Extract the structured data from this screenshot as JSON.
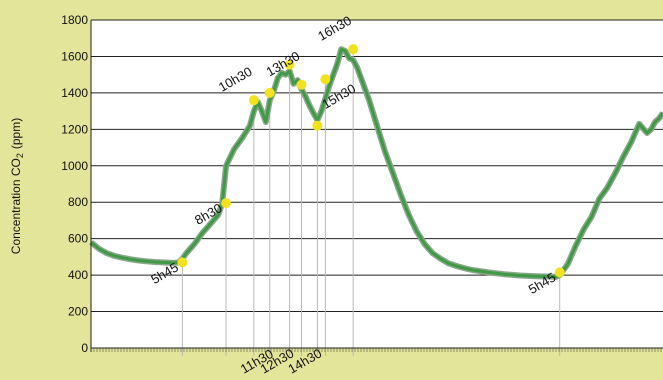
{
  "chart_data": {
    "type": "line",
    "ylabel": "Concentration CO",
    "ylabel_sub": "2",
    "ylabel_unit": "(ppm)",
    "ylim": [
      0,
      1800
    ],
    "yticks": [
      0,
      200,
      400,
      600,
      800,
      1000,
      1200,
      1400,
      1600,
      1800
    ],
    "ytick_labels": [
      "0",
      "200",
      "400",
      "600",
      "800",
      "1000",
      "1200",
      "1400",
      "1600",
      "1800"
    ],
    "grid": "horizontal",
    "colors": {
      "plot_bg": "#ffffff",
      "page_bg": "#e3e69a",
      "line": "#3f9a45",
      "line_shadow": "#8aa68a",
      "marker": "#f2e21d",
      "grid": "#222222",
      "guide": "#b8b8b8"
    },
    "series": [
      {
        "x": [
          0,
          0.5,
          1,
          1.5,
          2,
          2.5,
          3,
          3.5,
          4,
          4.5,
          5,
          5.25,
          5.5,
          5.75,
          6,
          6.5,
          7,
          7.5,
          8,
          8.25,
          8.5,
          9,
          9.5,
          10,
          10.25,
          10.5,
          10.75,
          11,
          11.25,
          11.5,
          11.75,
          12,
          12.25,
          12.5,
          12.75,
          13,
          13.25,
          13.5,
          13.75,
          14,
          14.25,
          14.5,
          14.75,
          15,
          15.25,
          15.5,
          15.75,
          16,
          16.25,
          16.5,
          16.75,
          17,
          17.5,
          18,
          18.5,
          19,
          19.5,
          20,
          20.5,
          21,
          21.5,
          22,
          22.5,
          23,
          23.5,
          24,
          25,
          26,
          27,
          28,
          29,
          29.25,
          29.5,
          30,
          30.5,
          31,
          31.5,
          32,
          32.5,
          33,
          33.5,
          34,
          34.5,
          35,
          35.25,
          35.5,
          35.75,
          36
        ],
        "values": [
          580,
          545,
          520,
          505,
          495,
          487,
          480,
          476,
          472,
          470,
          468,
          467,
          470,
          490,
          520,
          570,
          630,
          680,
          730,
          790,
          1000,
          1090,
          1150,
          1220,
          1300,
          1350,
          1300,
          1240,
          1360,
          1410,
          1480,
          1510,
          1500,
          1520,
          1450,
          1470,
          1420,
          1380,
          1330,
          1290,
          1250,
          1300,
          1370,
          1440,
          1500,
          1560,
          1640,
          1630,
          1590,
          1580,
          1540,
          1480,
          1360,
          1220,
          1080,
          960,
          840,
          730,
          640,
          570,
          520,
          490,
          465,
          450,
          438,
          428,
          415,
          405,
          398,
          394,
          392,
          390,
          400,
          460,
          560,
          650,
          720,
          820,
          880,
          960,
          1050,
          1130,
          1230,
          1180,
          1200,
          1240,
          1260,
          1290
        ]
      }
    ],
    "annotations": [
      {
        "label": "5h45",
        "x": 5.75,
        "y": 470,
        "label_pos": "below"
      },
      {
        "label": "8h30",
        "x": 8.5,
        "y": 795,
        "label_pos": "below"
      },
      {
        "label": "10h30",
        "x": 10.25,
        "y": 1360,
        "label_pos": "above"
      },
      {
        "label": "11h30",
        "x": 11.25,
        "y": 1400,
        "label_pos": "axis"
      },
      {
        "label": "12h30",
        "x": 12.5,
        "y": 1555,
        "label_pos": "axis"
      },
      {
        "label": "13h30",
        "x": 13.25,
        "y": 1445,
        "label_pos": "above"
      },
      {
        "label": "14h30",
        "x": 14.25,
        "y": 1220,
        "label_pos": "axis"
      },
      {
        "label": "15h30",
        "x": 14.75,
        "y": 1475,
        "label_pos": "right"
      },
      {
        "label": "16h30",
        "x": 16.5,
        "y": 1640,
        "label_pos": "above"
      },
      {
        "label": "5h45",
        "x": 29.5,
        "y": 415,
        "label_pos": "below"
      }
    ]
  }
}
